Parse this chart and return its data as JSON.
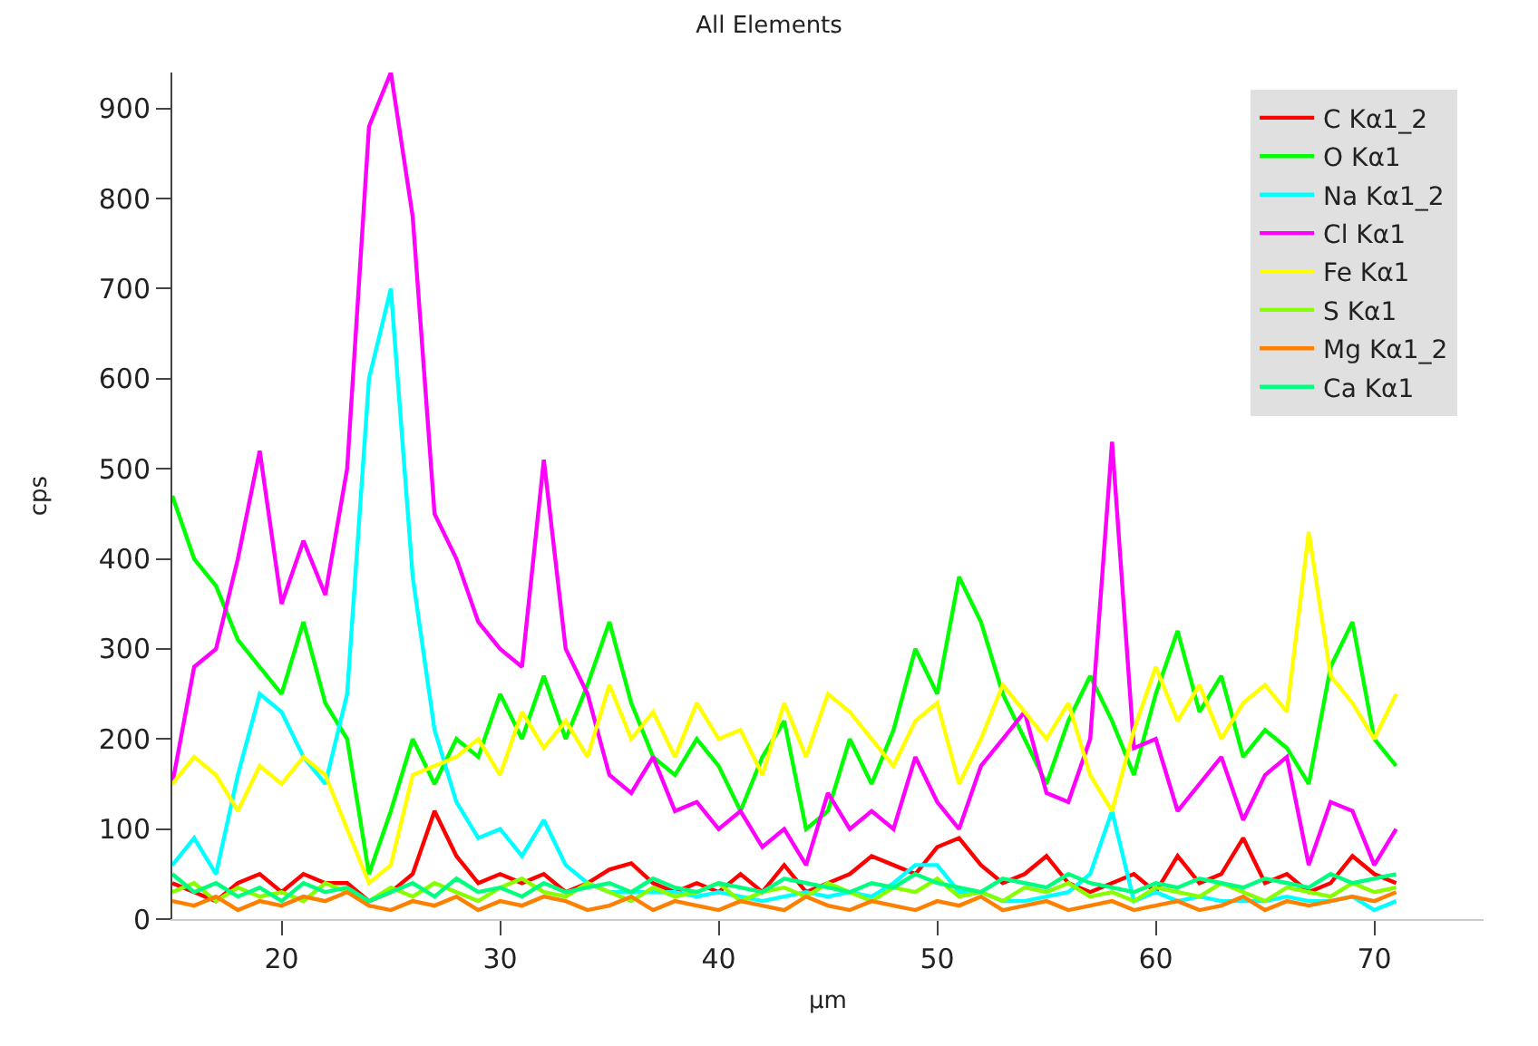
{
  "chart_data": {
    "type": "line",
    "title": "All Elements",
    "xlabel": "µm",
    "ylabel": "cps",
    "x": [
      15,
      16,
      17,
      18,
      19,
      20,
      21,
      22,
      23,
      24,
      25,
      26,
      27,
      28,
      29,
      30,
      31,
      32,
      33,
      34,
      35,
      36,
      37,
      38,
      39,
      40,
      41,
      42,
      43,
      44,
      45,
      46,
      47,
      48,
      49,
      50,
      51,
      52,
      53,
      54,
      55,
      56,
      57,
      58,
      59,
      60,
      61,
      62,
      63,
      64,
      65,
      66,
      67,
      68,
      69,
      70,
      71
    ],
    "xlim": [
      15,
      75
    ],
    "xticks": [
      20,
      30,
      40,
      50,
      60,
      70
    ],
    "ylim": [
      0,
      940
    ],
    "yticks": [
      0,
      100,
      200,
      300,
      400,
      500,
      600,
      700,
      800,
      900
    ],
    "grid": false,
    "legend": "top right",
    "marker": "none",
    "line_style": "solid",
    "series": [
      {
        "name": "C Kα1_2",
        "color": "#ff0000",
        "values": [
          40,
          30,
          20,
          40,
          50,
          30,
          50,
          40,
          40,
          20,
          30,
          50,
          120,
          70,
          40,
          50,
          40,
          50,
          30,
          40,
          55,
          62,
          40,
          30,
          40,
          30,
          50,
          30,
          60,
          30,
          40,
          50,
          70,
          60,
          50,
          80,
          90,
          60,
          40,
          50,
          70,
          40,
          30,
          40,
          50,
          30,
          70,
          40,
          50,
          90,
          40,
          50,
          30,
          40,
          70,
          50,
          40
        ]
      },
      {
        "name": "O Kα1",
        "color": "#00ff00",
        "values": [
          470,
          400,
          370,
          310,
          280,
          250,
          330,
          240,
          200,
          50,
          120,
          200,
          150,
          200,
          180,
          250,
          200,
          270,
          200,
          260,
          330,
          240,
          180,
          160,
          200,
          170,
          120,
          180,
          220,
          100,
          120,
          200,
          150,
          210,
          300,
          250,
          380,
          330,
          250,
          200,
          150,
          220,
          270,
          220,
          160,
          250,
          320,
          230,
          270,
          180,
          210,
          190,
          150,
          280,
          330,
          200,
          170
        ]
      },
      {
        "name": "Na Kα1_2",
        "color": "#00ffff",
        "values": [
          60,
          90,
          50,
          160,
          250,
          230,
          180,
          150,
          250,
          600,
          700,
          380,
          210,
          130,
          90,
          100,
          70,
          110,
          60,
          40,
          30,
          30,
          30,
          30,
          25,
          30,
          25,
          20,
          25,
          30,
          25,
          30,
          25,
          40,
          60,
          60,
          30,
          30,
          20,
          20,
          25,
          30,
          50,
          120,
          20,
          30,
          20,
          25,
          20,
          20,
          20,
          25,
          20,
          20,
          25,
          10,
          20
        ]
      },
      {
        "name": "Cl Kα1",
        "color": "#ff00ff",
        "values": [
          150,
          280,
          300,
          400,
          520,
          350,
          420,
          360,
          500,
          880,
          940,
          780,
          450,
          400,
          330,
          300,
          280,
          510,
          300,
          250,
          160,
          140,
          180,
          120,
          130,
          100,
          120,
          80,
          100,
          60,
          140,
          100,
          120,
          100,
          180,
          130,
          100,
          170,
          200,
          230,
          140,
          130,
          200,
          530,
          190,
          200,
          120,
          150,
          180,
          110,
          160,
          180,
          60,
          130,
          120,
          60,
          100
        ]
      },
      {
        "name": "Fe Kα1",
        "color": "#ffff00",
        "values": [
          150,
          180,
          160,
          120,
          170,
          150,
          180,
          160,
          100,
          40,
          60,
          160,
          170,
          180,
          200,
          160,
          230,
          190,
          220,
          180,
          260,
          200,
          230,
          180,
          240,
          200,
          210,
          160,
          240,
          180,
          250,
          230,
          200,
          170,
          220,
          240,
          150,
          200,
          260,
          230,
          200,
          240,
          160,
          120,
          210,
          280,
          220,
          260,
          200,
          240,
          260,
          230,
          430,
          270,
          240,
          200,
          250
        ]
      },
      {
        "name": "S Kα1",
        "color": "#88ff00",
        "values": [
          30,
          40,
          20,
          35,
          25,
          30,
          20,
          40,
          30,
          20,
          35,
          25,
          40,
          30,
          20,
          35,
          45,
          30,
          25,
          40,
          30,
          20,
          35,
          25,
          30,
          40,
          20,
          30,
          35,
          25,
          40,
          30,
          20,
          35,
          30,
          45,
          25,
          30,
          20,
          35,
          30,
          40,
          25,
          30,
          20,
          35,
          30,
          25,
          40,
          30,
          20,
          35,
          30,
          25,
          40,
          30,
          35
        ]
      },
      {
        "name": "Mg Kα1_2",
        "color": "#ff8000",
        "values": [
          20,
          15,
          25,
          10,
          20,
          15,
          25,
          20,
          30,
          15,
          10,
          20,
          15,
          25,
          10,
          20,
          15,
          25,
          20,
          10,
          15,
          25,
          10,
          20,
          15,
          10,
          20,
          15,
          10,
          25,
          15,
          10,
          20,
          15,
          10,
          20,
          15,
          25,
          10,
          15,
          20,
          10,
          15,
          20,
          10,
          15,
          20,
          10,
          15,
          25,
          10,
          20,
          15,
          20,
          25,
          20,
          30
        ]
      },
      {
        "name": "Ca Kα1",
        "color": "#00ff80",
        "values": [
          50,
          30,
          40,
          25,
          35,
          20,
          40,
          30,
          35,
          20,
          30,
          40,
          25,
          45,
          30,
          35,
          25,
          40,
          30,
          35,
          40,
          30,
          45,
          35,
          30,
          40,
          35,
          30,
          45,
          40,
          35,
          30,
          40,
          35,
          50,
          40,
          35,
          30,
          45,
          40,
          35,
          50,
          40,
          35,
          30,
          40,
          35,
          45,
          40,
          35,
          45,
          40,
          35,
          50,
          40,
          45,
          50
        ]
      }
    ]
  }
}
